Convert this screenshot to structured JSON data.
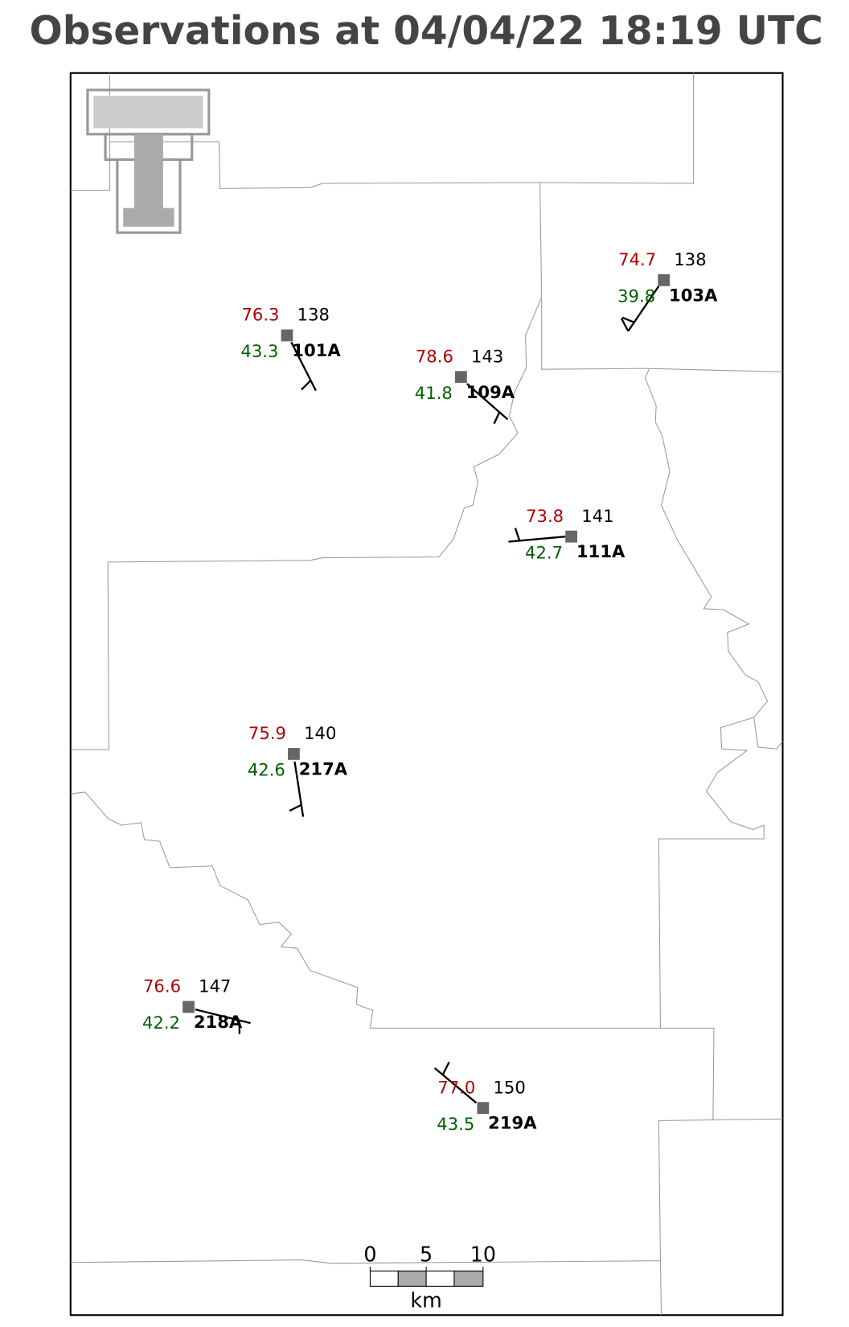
{
  "title": "Observations at 04/04/22 18:19 UTC",
  "stations": [
    {
      "id": "103A",
      "temperature": "74.7",
      "dewpoint": "39.8",
      "value": "138"
    },
    {
      "id": "101A",
      "temperature": "76.3",
      "dewpoint": "43.3",
      "value": "138"
    },
    {
      "id": "109A",
      "temperature": "78.6",
      "dewpoint": "41.8",
      "value": "143"
    },
    {
      "id": "111A",
      "temperature": "73.8",
      "dewpoint": "42.7",
      "value": "141"
    },
    {
      "id": "217A",
      "temperature": "75.9",
      "dewpoint": "42.6",
      "value": "140"
    },
    {
      "id": "218A",
      "temperature": "76.6",
      "dewpoint": "42.2",
      "value": "147"
    },
    {
      "id": "219A",
      "temperature": "77.0",
      "dewpoint": "43.5",
      "value": "150"
    }
  ],
  "scale_bar": {
    "ticks": [
      "0",
      "5",
      "10"
    ],
    "unit": "km"
  }
}
